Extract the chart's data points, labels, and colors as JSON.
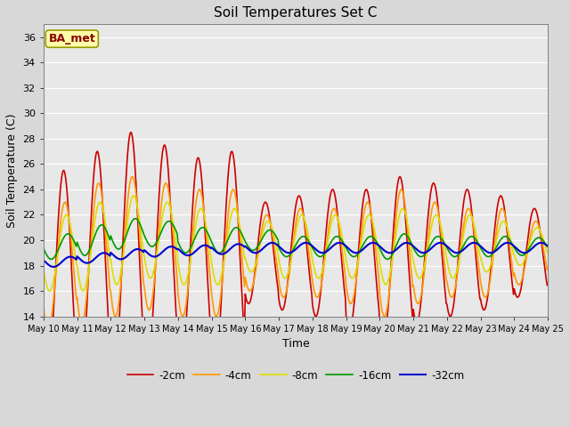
{
  "title": "Soil Temperatures Set C",
  "xlabel": "Time",
  "ylabel": "Soil Temperature (C)",
  "ylim": [
    14,
    37
  ],
  "yticks": [
    14,
    16,
    18,
    20,
    22,
    24,
    26,
    28,
    30,
    32,
    34,
    36
  ],
  "fig_bg_color": "#d8d8d8",
  "plot_bg_color": "#e8e8e8",
  "label_box_text": "BA_met",
  "label_box_facecolor": "#ffffaa",
  "label_box_edgecolor": "#999900",
  "label_box_textcolor": "#880000",
  "series_labels": [
    "-2cm",
    "-4cm",
    "-8cm",
    "-16cm",
    "-32cm"
  ],
  "series_colors": [
    "#cc0000",
    "#ff9900",
    "#dddd00",
    "#009900",
    "#0000cc"
  ],
  "series_linewidths": [
    1.2,
    1.2,
    1.2,
    1.2,
    1.5
  ],
  "n_days": 15,
  "start_day": 10,
  "points_per_day": 48,
  "amplitudes_2cm": [
    8.5,
    9.0,
    9.5,
    8.5,
    8.0,
    8.5,
    4.0,
    4.5,
    5.0,
    5.5,
    6.5,
    5.5,
    5.0,
    4.5,
    3.5
  ],
  "amplitudes_4cm": [
    5.0,
    5.5,
    5.5,
    5.0,
    5.0,
    5.0,
    3.0,
    3.5,
    3.5,
    4.0,
    5.0,
    4.0,
    3.5,
    3.5,
    2.5
  ],
  "amplitudes_8cm": [
    3.0,
    3.5,
    3.5,
    3.0,
    3.0,
    3.0,
    2.0,
    2.5,
    2.5,
    2.5,
    3.0,
    2.5,
    2.5,
    2.0,
    1.5
  ],
  "amplitudes_16cm": [
    1.0,
    1.2,
    1.2,
    1.0,
    1.0,
    1.0,
    0.8,
    0.8,
    0.8,
    0.8,
    1.0,
    0.8,
    0.8,
    0.8,
    0.7
  ],
  "amplitudes_32cm": [
    0.4,
    0.4,
    0.4,
    0.4,
    0.4,
    0.4,
    0.4,
    0.4,
    0.4,
    0.4,
    0.4,
    0.4,
    0.4,
    0.4,
    0.4
  ],
  "means_2cm": [
    17.0,
    18.0,
    19.0,
    19.0,
    18.5,
    18.5,
    19.0,
    19.0,
    19.0,
    18.5,
    18.5,
    19.0,
    19.0,
    19.0,
    19.0
  ],
  "means_4cm": [
    18.0,
    19.0,
    19.5,
    19.5,
    19.0,
    19.0,
    19.0,
    19.0,
    19.0,
    19.0,
    19.0,
    19.0,
    19.0,
    19.0,
    19.0
  ],
  "means_8cm": [
    19.0,
    19.5,
    20.0,
    20.0,
    19.5,
    19.5,
    19.5,
    19.5,
    19.5,
    19.5,
    19.5,
    19.5,
    19.5,
    19.5,
    19.5
  ],
  "means_16cm": [
    19.5,
    20.0,
    20.5,
    20.5,
    20.0,
    20.0,
    20.0,
    19.5,
    19.5,
    19.5,
    19.5,
    19.5,
    19.5,
    19.5,
    19.5
  ],
  "means_32cm": [
    18.3,
    18.6,
    18.9,
    19.1,
    19.2,
    19.3,
    19.4,
    19.4,
    19.4,
    19.4,
    19.4,
    19.4,
    19.4,
    19.4,
    19.4
  ],
  "phase_2cm": 0.35,
  "phase_4cm": 0.39,
  "phase_8cm": 0.43,
  "phase_16cm": 0.48,
  "phase_32cm": 0.55
}
